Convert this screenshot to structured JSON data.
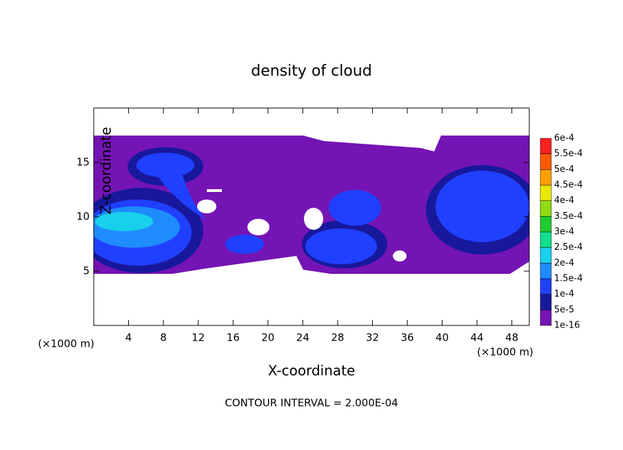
{
  "chart_data": {
    "type": "contour",
    "title": "density of cloud",
    "x_label": "X-coordinate",
    "y_label": "Z-coordinate",
    "x_unit": "(×1000 m)",
    "y_unit": "(×1000 m)",
    "footer": "CONTOUR INTERVAL = 2.000E-04",
    "xlim": [
      0,
      50
    ],
    "ylim": [
      0,
      20
    ],
    "xticks": [
      4,
      8,
      12,
      16,
      20,
      24,
      28,
      32,
      36,
      40,
      44,
      48
    ],
    "yticks": [
      5,
      10,
      15
    ],
    "colorbar": {
      "levels": [
        {
          "value": 1e-16,
          "label": "1e-16"
        },
        {
          "value": 5e-05,
          "label": "5e-5"
        },
        {
          "value": 0.0001,
          "label": "1e-4"
        },
        {
          "value": 0.00015,
          "label": "1.5e-4"
        },
        {
          "value": 0.0002,
          "label": "2e-4"
        },
        {
          "value": 0.00025,
          "label": "2.5e-4"
        },
        {
          "value": 0.0003,
          "label": "3e-4"
        },
        {
          "value": 0.00035,
          "label": "3.5e-4"
        },
        {
          "value": 0.0004,
          "label": "4e-4"
        },
        {
          "value": 0.00045,
          "label": "4.5e-4"
        },
        {
          "value": 0.0005,
          "label": "5e-4"
        },
        {
          "value": 0.00055,
          "label": "5.5e-4"
        },
        {
          "value": 0.0006,
          "label": "6e-4"
        }
      ],
      "colors": [
        "#7414b4",
        "#18189c",
        "#2040ff",
        "#1e8cff",
        "#18d0ec",
        "#10e08c",
        "#20cc30",
        "#90dc10",
        "#e8e800",
        "#ffa000",
        "#ff5a00",
        "#ff2020"
      ]
    }
  }
}
